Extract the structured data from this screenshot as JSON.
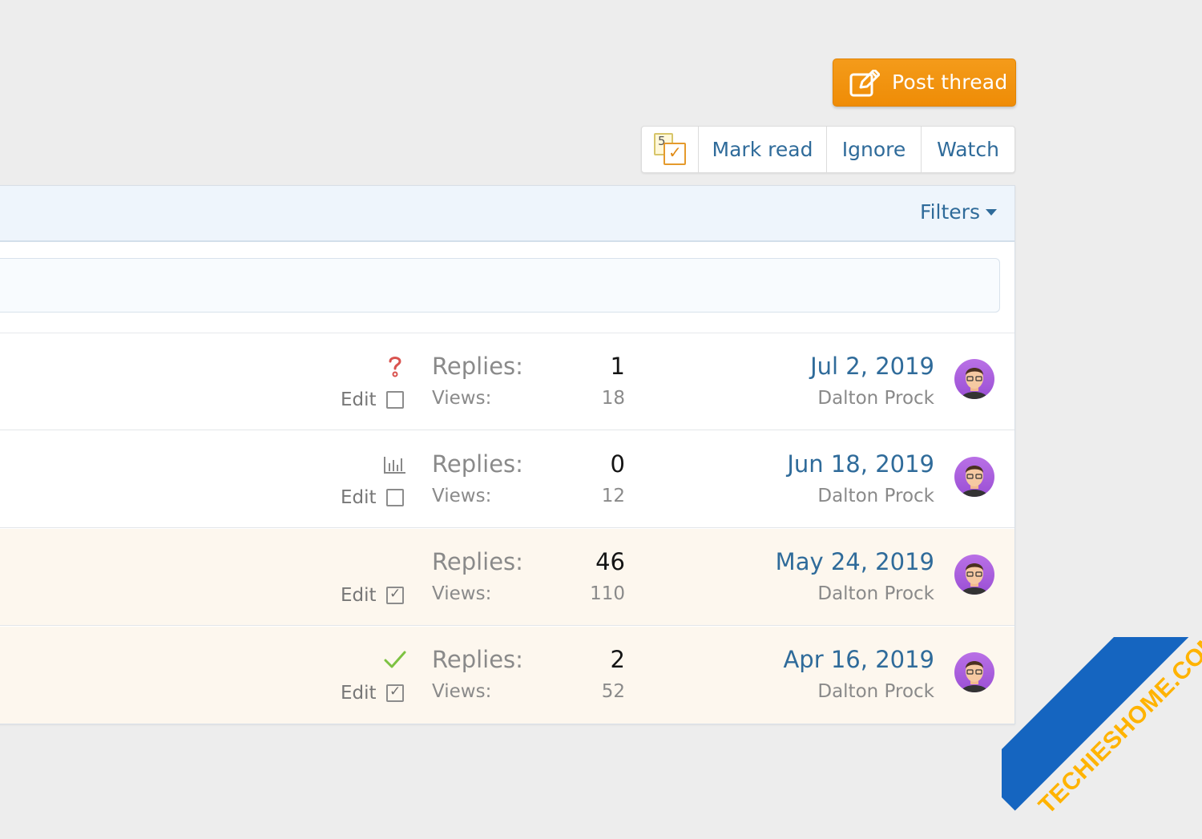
{
  "toolbar": {
    "post_thread_label": "Post thread",
    "multi_select_count": "5",
    "mark_read_label": "Mark read",
    "ignore_label": "Ignore",
    "watch_label": "Watch",
    "filters_label": "Filters"
  },
  "threads": [
    {
      "status_icon": "question-icon",
      "edit_label": "Edit",
      "selected": false,
      "replies_label": "Replies:",
      "replies": "1",
      "views_label": "Views:",
      "views": "18",
      "last_date": "Jul 2, 2019",
      "last_user": "Dalton Prock"
    },
    {
      "status_icon": "poll-icon",
      "edit_label": "Edit",
      "selected": false,
      "replies_label": "Replies:",
      "replies": "0",
      "views_label": "Views:",
      "views": "12",
      "last_date": "Jun 18, 2019",
      "last_user": "Dalton Prock"
    },
    {
      "status_icon": "",
      "edit_label": "Edit",
      "selected": true,
      "replies_label": "Replies:",
      "replies": "46",
      "views_label": "Views:",
      "views": "110",
      "last_date": "May 24, 2019",
      "last_user": "Dalton Prock"
    },
    {
      "status_icon": "checkmark-icon",
      "edit_label": "Edit",
      "selected": true,
      "replies_label": "Replies:",
      "replies": "2",
      "views_label": "Views:",
      "views": "52",
      "last_date": "Apr 16, 2019",
      "last_user": "Dalton Prock"
    }
  ],
  "watermark": {
    "text": "TECHIESHOME.COM"
  },
  "colors": {
    "accent_orange": "#f0920e",
    "link_blue": "#2f6b9a",
    "unread_row_bg": "#fdf7ee",
    "solved_green": "#7dc242",
    "question_red": "#d9534f"
  }
}
